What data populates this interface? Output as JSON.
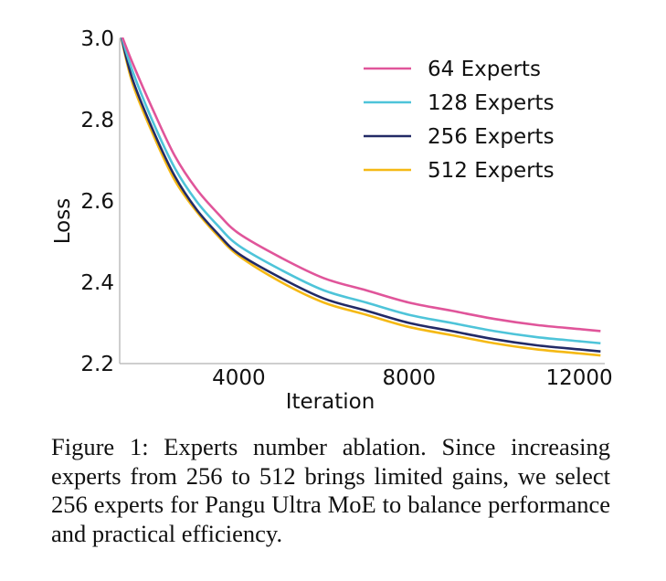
{
  "chart_data": {
    "type": "line",
    "xlabel": "Iteration",
    "ylabel": "Loss",
    "xlim": [
      1200,
      12600
    ],
    "ylim": [
      2.2,
      3.0
    ],
    "xticks": [
      4000,
      8000,
      12000
    ],
    "xtick_labels": [
      "4000",
      "8000",
      "12000"
    ],
    "yticks": [
      2.2,
      2.4,
      2.6,
      2.8,
      3.0
    ],
    "ytick_labels": [
      "2.2",
      "2.4",
      "2.6",
      "2.8",
      "3.0"
    ],
    "grid": false,
    "legend_position": "top-right",
    "x": [
      1200,
      1500,
      2000,
      2500,
      3000,
      3500,
      4000,
      5000,
      6000,
      7000,
      8000,
      9000,
      10000,
      11000,
      12000,
      12500
    ],
    "series": [
      {
        "name": "64 Experts",
        "color": "#e0559a",
        "values": [
          3.02,
          2.94,
          2.82,
          2.71,
          2.63,
          2.57,
          2.52,
          2.46,
          2.41,
          2.38,
          2.35,
          2.33,
          2.31,
          2.295,
          2.285,
          2.28
        ]
      },
      {
        "name": "128 Experts",
        "color": "#4ec4d9",
        "values": [
          3.02,
          2.92,
          2.79,
          2.68,
          2.6,
          2.54,
          2.49,
          2.43,
          2.38,
          2.35,
          2.32,
          2.3,
          2.28,
          2.265,
          2.255,
          2.25
        ]
      },
      {
        "name": "256 Experts",
        "color": "#222a66",
        "values": [
          3.02,
          2.9,
          2.77,
          2.66,
          2.58,
          2.52,
          2.47,
          2.41,
          2.36,
          2.33,
          2.3,
          2.28,
          2.26,
          2.245,
          2.235,
          2.23
        ]
      },
      {
        "name": "512 Experts",
        "color": "#f5b915",
        "values": [
          3.02,
          2.89,
          2.76,
          2.65,
          2.575,
          2.515,
          2.465,
          2.4,
          2.35,
          2.32,
          2.29,
          2.27,
          2.25,
          2.235,
          2.225,
          2.22
        ]
      }
    ]
  },
  "caption": "Figure 1: Experts number ablation. Since increasing experts from 256 to 512 brings limited gains, we select 256 experts for Pangu Ultra MoE  to balance performance and practical efficiency."
}
